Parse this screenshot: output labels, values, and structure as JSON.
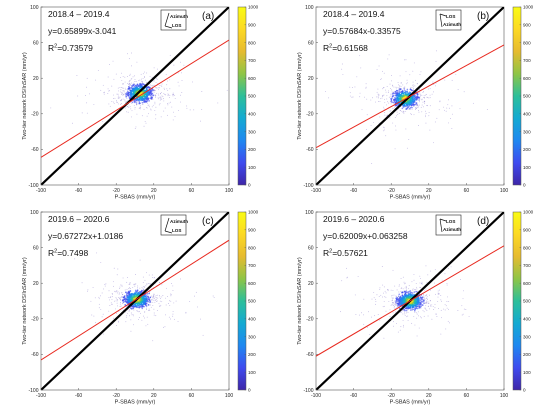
{
  "colors": {
    "fit_line": "#e8291f",
    "one_to_one": "#000000",
    "colormap": [
      "#3e26a8",
      "#3f4bef",
      "#1f88f0",
      "#14aad2",
      "#2dbf9a",
      "#8fc546",
      "#e6bb30",
      "#fcd924",
      "#f9fb14"
    ]
  },
  "chart_data": [
    {
      "type": "scatter",
      "panel": "(a)",
      "period": "2018.4 – 2019.4",
      "equation": "y=0.65899x-3.041",
      "r2_prefix": "R",
      "r2_sup": "2",
      "r2_value": "=0.73579",
      "slope": 0.65899,
      "intercept": -3.041,
      "cluster_center": [
        5,
        3
      ],
      "inset": {
        "labels": [
          "Azimuth",
          "LOS"
        ],
        "icon": "satellite-geometry-icon"
      },
      "xlabel": "P-SBAS (mm/yr)",
      "ylabel": "Two-tier network DS/InSAR (mm/yr)",
      "xlim": [
        -100,
        100
      ],
      "ylim": [
        -100,
        100
      ],
      "xticks": [
        "-100",
        "-60",
        "-20",
        "20",
        "60",
        "100"
      ],
      "yticks": [
        "-100",
        "-60",
        "-20",
        "20",
        "60",
        "100"
      ],
      "colorbar": {
        "ticks": [
          "0",
          "100",
          "200",
          "300",
          "400",
          "500",
          "600",
          "700",
          "800",
          "900",
          "1000"
        ]
      }
    },
    {
      "type": "scatter",
      "panel": "(b)",
      "period": "2018.4 – 2019.4",
      "equation": "y=0.57684x-0.33575",
      "r2_prefix": "R",
      "r2_sup": "2",
      "r2_value": "=0.61568",
      "slope": 0.57684,
      "intercept": -0.33575,
      "cluster_center": [
        -5,
        -3
      ],
      "inset": {
        "labels": [
          "LOS",
          "Azimuth"
        ],
        "icon": "satellite-geometry-icon"
      },
      "xlabel": "P-SBAS (mm/yr)",
      "ylabel": "Two-tier network DS/InSAR (mm/yr)",
      "xlim": [
        -100,
        100
      ],
      "ylim": [
        -100,
        100
      ],
      "xticks": [
        "-100",
        "-60",
        "-20",
        "20",
        "60",
        "100"
      ],
      "yticks": [
        "-100",
        "-60",
        "-20",
        "20",
        "60",
        "100"
      ],
      "colorbar": {
        "ticks": [
          "0",
          "100",
          "200",
          "300",
          "400",
          "500",
          "600",
          "700",
          "800",
          "900",
          "1000"
        ]
      }
    },
    {
      "type": "scatter",
      "panel": "(c)",
      "period": "2019.6 – 2020.6",
      "equation": "y=0.67272x+1.0186",
      "r2_prefix": "R",
      "r2_sup": "2",
      "r2_value": "=0.7498",
      "slope": 0.67272,
      "intercept": 1.0186,
      "cluster_center": [
        2,
        2
      ],
      "inset": {
        "labels": [
          "Azimuth",
          "LOS"
        ],
        "icon": "satellite-geometry-icon"
      },
      "xlabel": "P-SBAS (mm/yr)",
      "ylabel": "Two-tier network DS/InSAR (mm/yr)",
      "xlim": [
        -100,
        100
      ],
      "ylim": [
        -100,
        100
      ],
      "xticks": [
        "-100",
        "-60",
        "-20",
        "20",
        "60",
        "100"
      ],
      "yticks": [
        "-100",
        "-60",
        "-20",
        "20",
        "60",
        "100"
      ],
      "colorbar": {
        "ticks": [
          "0",
          "100",
          "200",
          "300",
          "400",
          "500",
          "600",
          "700",
          "800",
          "900",
          "1000"
        ]
      }
    },
    {
      "type": "scatter",
      "panel": "(d)",
      "period": "2019.6 – 2020.6",
      "equation": "y=0.62009x+0.063258",
      "r2_prefix": "R",
      "r2_sup": "2",
      "r2_value": "=0.57621",
      "slope": 0.62009,
      "intercept": 0.063258,
      "cluster_center": [
        0,
        0
      ],
      "inset": {
        "labels": [
          "LOS",
          "Azimuth"
        ],
        "icon": "satellite-geometry-icon"
      },
      "xlabel": "P-SBAS (mm/yr)",
      "ylabel": "Two-tier network DS/InSAR (mm/yr)",
      "xlim": [
        -100,
        100
      ],
      "ylim": [
        -100,
        100
      ],
      "xticks": [
        "-100",
        "-60",
        "-20",
        "20",
        "60",
        "100"
      ],
      "yticks": [
        "-100",
        "-60",
        "-20",
        "20",
        "60",
        "100"
      ],
      "colorbar": {
        "ticks": [
          "0",
          "100",
          "200",
          "300",
          "400",
          "500",
          "600",
          "700",
          "800",
          "900",
          "1000"
        ]
      }
    }
  ]
}
